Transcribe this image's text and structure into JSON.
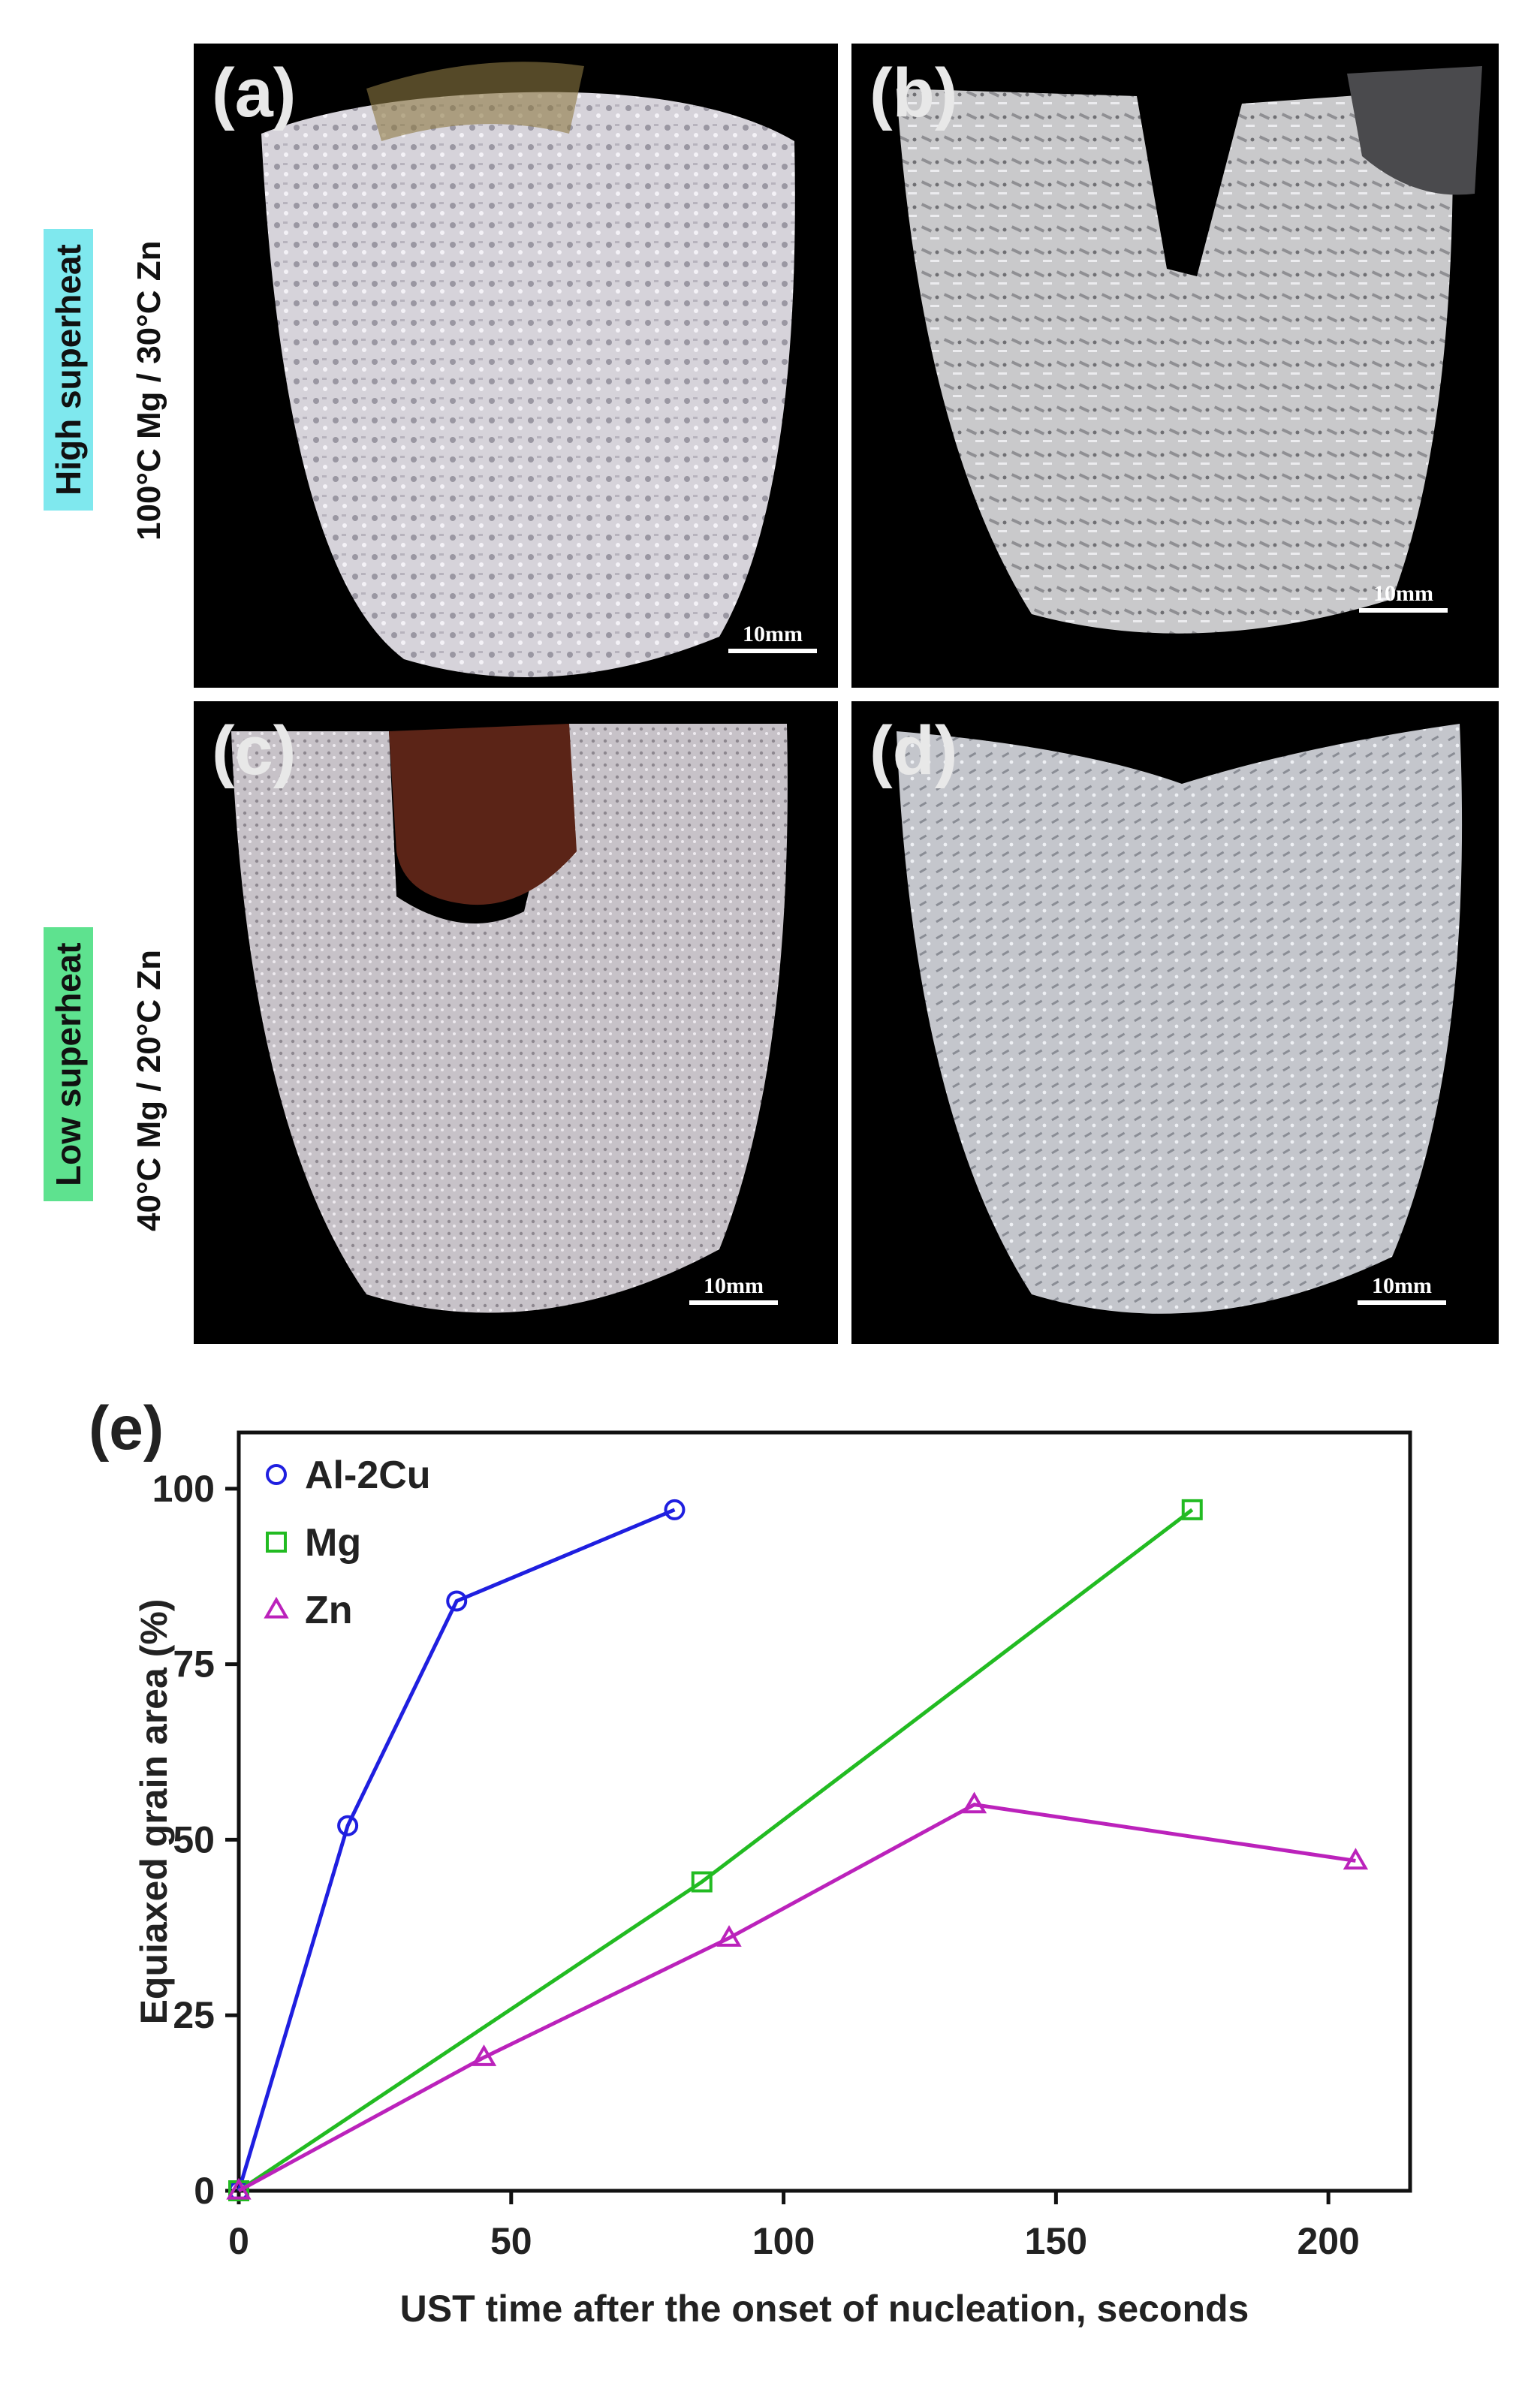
{
  "panels": {
    "a": {
      "label": "(a)",
      "scale": "10mm"
    },
    "b": {
      "label": "(b)",
      "scale": "10mm"
    },
    "c": {
      "label": "(c)",
      "scale": "10mm"
    },
    "d": {
      "label": "(d)",
      "scale": "10mm"
    }
  },
  "rows": {
    "top": {
      "tag": "High superheat",
      "condition": "100°C Mg / 30°C Zn",
      "tag_color": "#7fe8ee"
    },
    "bottom": {
      "tag": "Low superheat",
      "condition": "40°C Mg / 20°C Zn",
      "tag_color": "#5ee28f"
    }
  },
  "chart_label": "(e)",
  "chart_data": {
    "type": "line",
    "xlabel": "UST time after the onset of nucleation, seconds",
    "ylabel": "Equiaxed grain area (%)",
    "xlim": [
      0,
      215
    ],
    "ylim": [
      0,
      108
    ],
    "xticks": [
      0,
      50,
      100,
      150,
      200
    ],
    "yticks": [
      0,
      25,
      50,
      75,
      100
    ],
    "legend_position": "top-left",
    "grid": false,
    "series": [
      {
        "name": "Al-2Cu",
        "color": "#1f1fe0",
        "marker": "circle",
        "points": [
          [
            0,
            0
          ],
          [
            20,
            52
          ],
          [
            40,
            84
          ],
          [
            80,
            97
          ]
        ]
      },
      {
        "name": "Mg",
        "color": "#22bb22",
        "marker": "square",
        "points": [
          [
            0,
            0
          ],
          [
            85,
            44
          ],
          [
            175,
            97
          ]
        ]
      },
      {
        "name": "Zn",
        "color": "#bb22bb",
        "marker": "triangle",
        "points": [
          [
            0,
            0
          ],
          [
            45,
            19
          ],
          [
            90,
            36
          ],
          [
            135,
            55
          ],
          [
            205,
            47
          ]
        ]
      }
    ]
  }
}
